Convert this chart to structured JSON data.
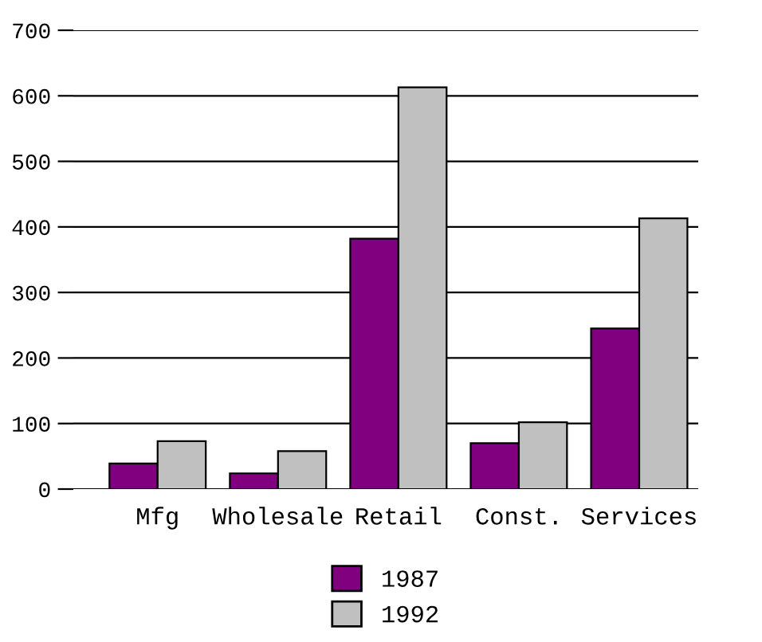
{
  "chart_data": {
    "type": "bar",
    "categories": [
      "Mfg",
      "Wholesale",
      "Retail",
      "Const.",
      "Services"
    ],
    "series": [
      {
        "name": "1987",
        "color": "#800080",
        "values": [
          39,
          24,
          382,
          70,
          245
        ]
      },
      {
        "name": "1992",
        "color": "#c0c0c0",
        "values": [
          73,
          58,
          613,
          102,
          413
        ]
      }
    ],
    "ylim": [
      0,
      700
    ],
    "yticks": [
      0,
      100,
      200,
      300,
      400,
      500,
      600,
      700
    ],
    "grid": "y",
    "legend": "bottom"
  }
}
